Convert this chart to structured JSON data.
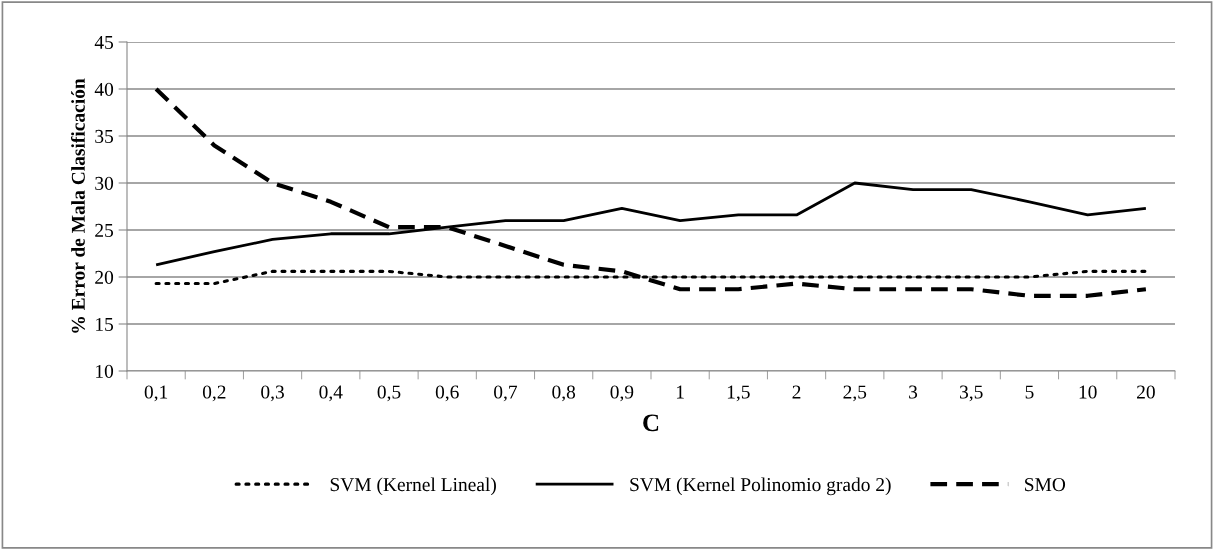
{
  "chart_data": {
    "type": "line",
    "xlabel": "C",
    "ylabel": "% Error de Mala Clasificación",
    "categories": [
      "0,1",
      "0,2",
      "0,3",
      "0,4",
      "0,5",
      "0,6",
      "0,7",
      "0,8",
      "0,9",
      "1",
      "1,5",
      "2",
      "2,5",
      "3",
      "3,5",
      "5",
      "10",
      "20"
    ],
    "series": [
      {
        "name": "SVM (Kernel Lineal)",
        "color": "#000000",
        "line_style": "dotted",
        "values": [
          19.3,
          19.3,
          20.6,
          20.6,
          20.6,
          20,
          20,
          20,
          20,
          20,
          20,
          20,
          20,
          20,
          20,
          20,
          20.6,
          20.6
        ]
      },
      {
        "name": "SVM (Kernel Polinomio grado 2)",
        "color": "#000000",
        "line_style": "solid",
        "values": [
          21.3,
          22.7,
          24,
          24.6,
          24.6,
          25.3,
          26,
          26,
          27.3,
          26,
          26.6,
          26.6,
          30,
          29.3,
          29.3,
          28,
          26.6,
          27.3
        ]
      },
      {
        "name": "SMO",
        "color": "#000000",
        "line_style": "dashed",
        "values": [
          40,
          34,
          30,
          28,
          25.3,
          25.3,
          23.3,
          21.3,
          20.6,
          18.7,
          18.7,
          19.3,
          18.7,
          18.7,
          18.7,
          18,
          18,
          18.7
        ]
      }
    ],
    "ylim": [
      10,
      45
    ],
    "yticks": [
      10,
      15,
      20,
      25,
      30,
      35,
      40,
      45
    ],
    "grid": "y",
    "legend": "bottom",
    "marker": "none"
  }
}
